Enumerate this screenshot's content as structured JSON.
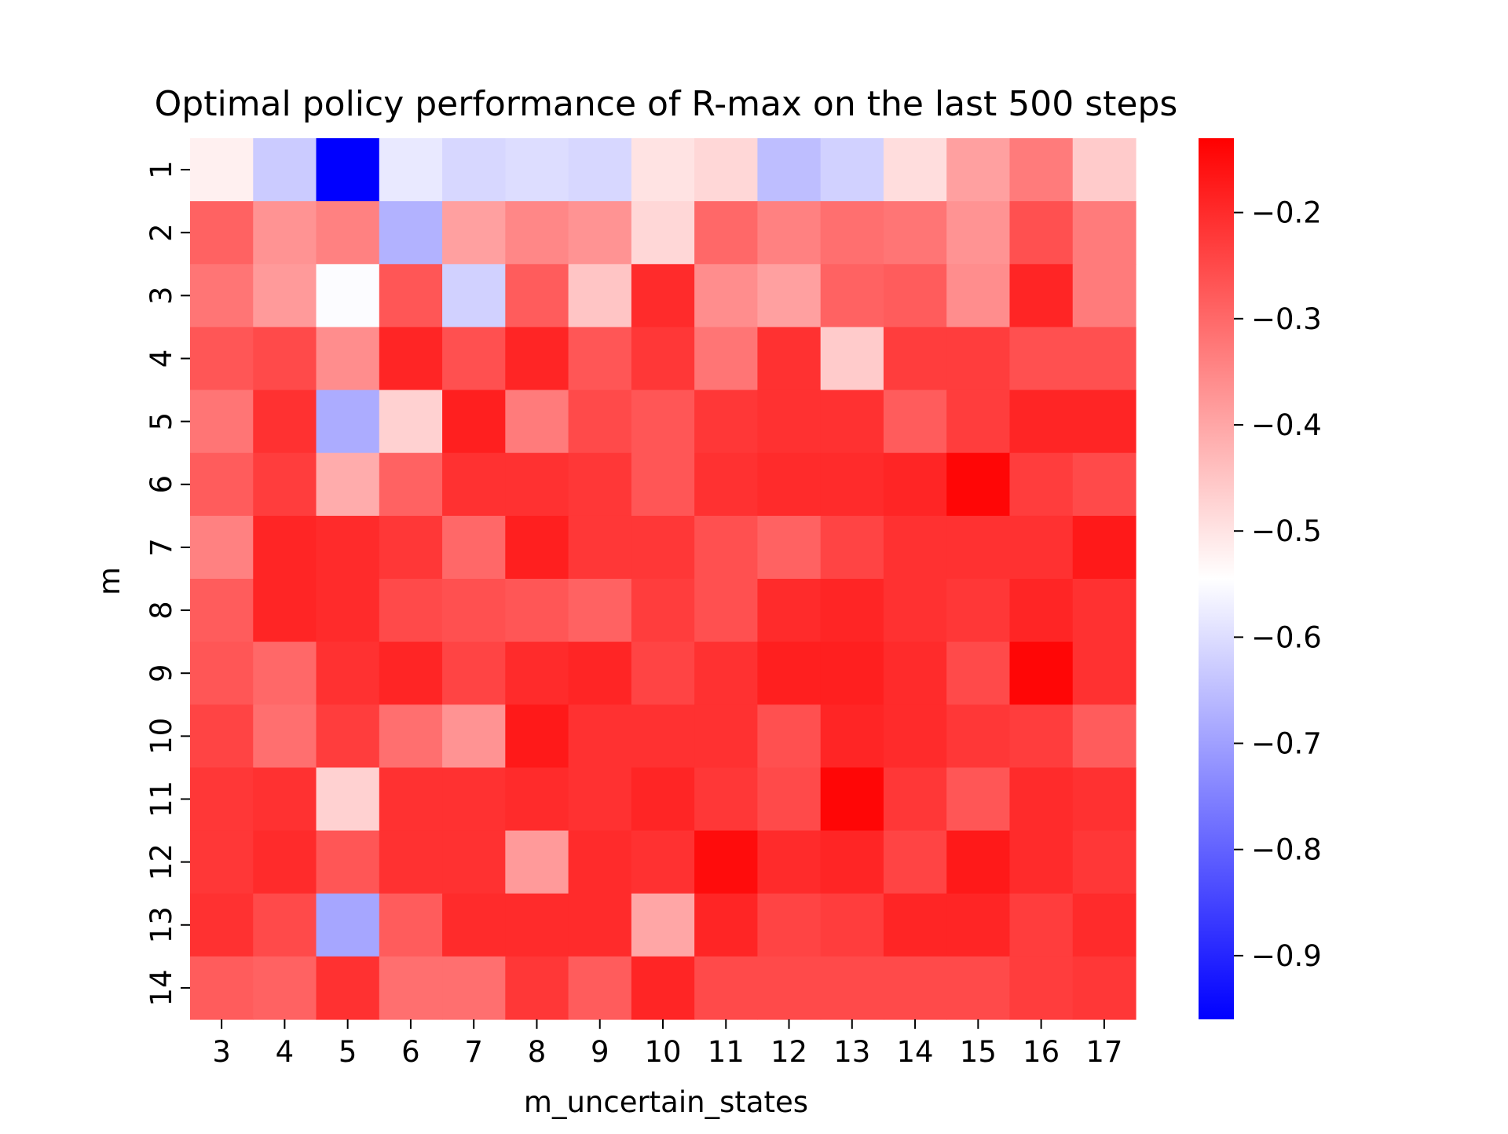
{
  "chart_data": {
    "type": "heatmap",
    "title": "Optimal policy performance of R-max on the last 500 steps",
    "xlabel": "m_uncertain_states",
    "ylabel": "m",
    "x_categories": [
      "3",
      "4",
      "5",
      "6",
      "7",
      "8",
      "9",
      "10",
      "11",
      "12",
      "13",
      "14",
      "15",
      "16",
      "17"
    ],
    "y_categories": [
      "1",
      "2",
      "3",
      "4",
      "5",
      "6",
      "7",
      "8",
      "9",
      "10",
      "11",
      "12",
      "13",
      "14"
    ],
    "colormap": "bwr",
    "colormap_colors": {
      "low": "#0000ff",
      "mid": "#ffffff",
      "high": "#ff0000"
    },
    "vmin": -0.96,
    "vmax": -0.13,
    "colorbar_ticks": [
      -0.9,
      -0.8,
      -0.7,
      -0.6,
      -0.5,
      -0.4,
      -0.3,
      -0.2
    ],
    "colorbar_tick_labels": [
      "−0.9",
      "−0.8",
      "−0.7",
      "−0.6",
      "−0.5",
      "−0.4",
      "−0.3",
      "−0.2"
    ],
    "grid": false,
    "values": [
      [
        -0.52,
        -0.63,
        -0.96,
        -0.58,
        -0.61,
        -0.6,
        -0.61,
        -0.5,
        -0.48,
        -0.65,
        -0.62,
        -0.49,
        -0.39,
        -0.33,
        -0.46
      ],
      [
        -0.29,
        -0.37,
        -0.34,
        -0.67,
        -0.39,
        -0.35,
        -0.37,
        -0.48,
        -0.3,
        -0.34,
        -0.31,
        -0.32,
        -0.37,
        -0.26,
        -0.33
      ],
      [
        -0.32,
        -0.38,
        -0.55,
        -0.27,
        -0.62,
        -0.28,
        -0.45,
        -0.2,
        -0.36,
        -0.39,
        -0.29,
        -0.28,
        -0.36,
        -0.19,
        -0.33
      ],
      [
        -0.27,
        -0.25,
        -0.36,
        -0.19,
        -0.26,
        -0.19,
        -0.27,
        -0.22,
        -0.32,
        -0.21,
        -0.46,
        -0.23,
        -0.23,
        -0.26,
        -0.26
      ],
      [
        -0.32,
        -0.21,
        -0.68,
        -0.47,
        -0.18,
        -0.33,
        -0.25,
        -0.27,
        -0.22,
        -0.21,
        -0.21,
        -0.28,
        -0.23,
        -0.19,
        -0.19
      ],
      [
        -0.28,
        -0.23,
        -0.41,
        -0.29,
        -0.21,
        -0.21,
        -0.22,
        -0.27,
        -0.21,
        -0.2,
        -0.2,
        -0.19,
        -0.14,
        -0.23,
        -0.25
      ],
      [
        -0.34,
        -0.19,
        -0.2,
        -0.22,
        -0.3,
        -0.18,
        -0.22,
        -0.22,
        -0.26,
        -0.29,
        -0.24,
        -0.21,
        -0.21,
        -0.21,
        -0.17
      ],
      [
        -0.28,
        -0.19,
        -0.2,
        -0.25,
        -0.26,
        -0.27,
        -0.29,
        -0.23,
        -0.26,
        -0.2,
        -0.19,
        -0.21,
        -0.22,
        -0.19,
        -0.21
      ],
      [
        -0.27,
        -0.3,
        -0.21,
        -0.19,
        -0.24,
        -0.2,
        -0.19,
        -0.24,
        -0.21,
        -0.18,
        -0.18,
        -0.2,
        -0.25,
        -0.14,
        -0.21
      ],
      [
        -0.24,
        -0.31,
        -0.23,
        -0.31,
        -0.37,
        -0.17,
        -0.21,
        -0.21,
        -0.21,
        -0.26,
        -0.19,
        -0.2,
        -0.22,
        -0.23,
        -0.28
      ],
      [
        -0.22,
        -0.21,
        -0.47,
        -0.21,
        -0.21,
        -0.2,
        -0.21,
        -0.19,
        -0.22,
        -0.25,
        -0.14,
        -0.22,
        -0.27,
        -0.2,
        -0.21
      ],
      [
        -0.22,
        -0.2,
        -0.27,
        -0.21,
        -0.21,
        -0.38,
        -0.2,
        -0.21,
        -0.15,
        -0.2,
        -0.19,
        -0.24,
        -0.17,
        -0.2,
        -0.22
      ],
      [
        -0.21,
        -0.25,
        -0.69,
        -0.28,
        -0.2,
        -0.2,
        -0.2,
        -0.4,
        -0.19,
        -0.24,
        -0.23,
        -0.19,
        -0.19,
        -0.23,
        -0.2
      ],
      [
        -0.28,
        -0.29,
        -0.21,
        -0.31,
        -0.31,
        -0.22,
        -0.28,
        -0.19,
        -0.25,
        -0.25,
        -0.25,
        -0.25,
        -0.25,
        -0.23,
        -0.22
      ]
    ]
  }
}
